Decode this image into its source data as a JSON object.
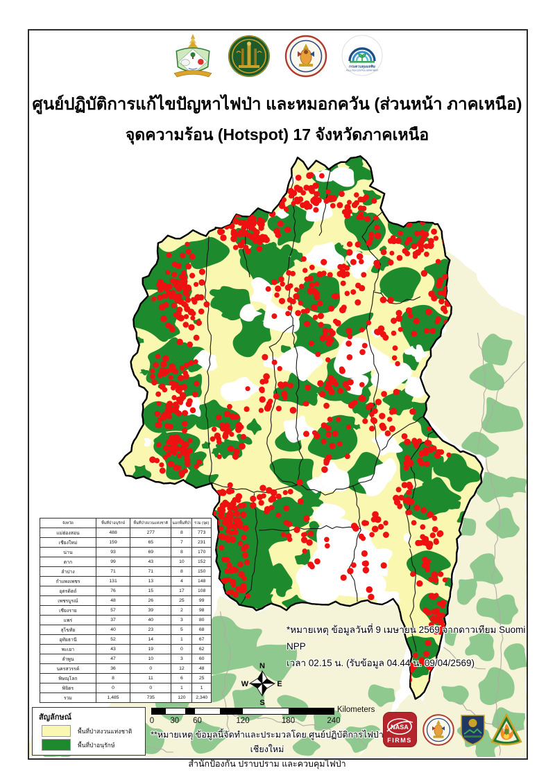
{
  "header": {
    "title_line1": "ศูนย์ปฏิบัติการแก้ไขปัญหาไฟป่า และหมอกควัน (ส่วนหน้า ภาคเหนือ)",
    "title_line2": "จุดความร้อน (Hotspot) 17 จังหวัดภาคเหนือ",
    "logos": [
      "ministry-natural-resources-crest",
      "royal-forest-department-seal",
      "national-parks-department-seal",
      "pollution-control-department-seal"
    ]
  },
  "table": {
    "headers": [
      "จังหวัด",
      "พื้นที่ป่าอนุรักษ์",
      "พื้นที่ป่าสงวนแห่งชาติ",
      "นอกพื้นที่ป่า",
      "รวม (จุด)"
    ],
    "rows": [
      [
        "แม่ฮ่องสอน",
        "488",
        "277",
        "8",
        "773"
      ],
      [
        "เชียงใหม่",
        "159",
        "65",
        "7",
        "231"
      ],
      [
        "น่าน",
        "93",
        "69",
        "8",
        "170"
      ],
      [
        "ตาก",
        "99",
        "43",
        "10",
        "152"
      ],
      [
        "ลำปาง",
        "71",
        "71",
        "8",
        "150"
      ],
      [
        "กำแพงเพชร",
        "131",
        "13",
        "4",
        "148"
      ],
      [
        "อุตรดิตถ์",
        "76",
        "15",
        "17",
        "108"
      ],
      [
        "เพชรบูรณ์",
        "48",
        "26",
        "25",
        "99"
      ],
      [
        "เชียงราย",
        "57",
        "39",
        "2",
        "98"
      ],
      [
        "แพร่",
        "37",
        "40",
        "3",
        "80"
      ],
      [
        "สุโขทัย",
        "40",
        "23",
        "5",
        "68"
      ],
      [
        "อุทัยธานี",
        "52",
        "14",
        "1",
        "67"
      ],
      [
        "พะเยา",
        "43",
        "19",
        "0",
        "62"
      ],
      [
        "ลำพูน",
        "47",
        "10",
        "3",
        "60"
      ],
      [
        "นครสวรรค์",
        "36",
        "0",
        "12",
        "48"
      ],
      [
        "พิษณุโลก",
        "8",
        "11",
        "6",
        "25"
      ],
      [
        "พิจิตร",
        "0",
        "0",
        "1",
        "1"
      ],
      [
        "รวม",
        "1,485",
        "735",
        "120",
        "2,340"
      ]
    ]
  },
  "legend": {
    "title": "สัญลักษณ์",
    "items": [
      {
        "label": "พื้นที่ป่าสงวนแห่งชาติ",
        "color": "#FAF7B0"
      },
      {
        "label": "พื้นที่ป่าอนุรักษ์",
        "color": "#1E8A2E"
      }
    ]
  },
  "notes": {
    "satellite_line1": "*หมายเหตุ ข้อมูลวันที่ 9 เมษายน 2569 จากดาวเทียม Suomi NPP",
    "satellite_line2": "เวลา 02.15 น. (รับข้อมูล 04.44 น. 09/04/2569)",
    "credit_line1": "**หมายเหตุ ข้อมูลนี้จัดทำและประมวลโดย ศูนย์ปฏิบัติการไฟป่าเชียงใหม่",
    "credit_line2": "สำนักป้องกัน ปราบปราม และควบคุมไฟป่า"
  },
  "scalebar": {
    "ticks": [
      "0",
      "30",
      "60",
      "120",
      "180",
      "240"
    ],
    "unit": "Kilometers"
  },
  "compass": {
    "north": "N",
    "south": "S",
    "east": "E",
    "west": "W"
  },
  "logo_text": {
    "nasa": "NASA",
    "firms": "FIRMS",
    "pcd_thai": "กรมควบคุมมลพิษ",
    "pcd_eng": "POLLUTION CONTROL DEPARTMENT"
  },
  "map_colors": {
    "hotspot": "#EE1111",
    "conservation_forest": "#1E8A2E",
    "reserved_forest": "#FAF7B0",
    "outside_forest": "#8FC98F",
    "outside_land": "#F5F3D8",
    "boundary": "#000000",
    "outside_boundary": "#ACACA2"
  }
}
